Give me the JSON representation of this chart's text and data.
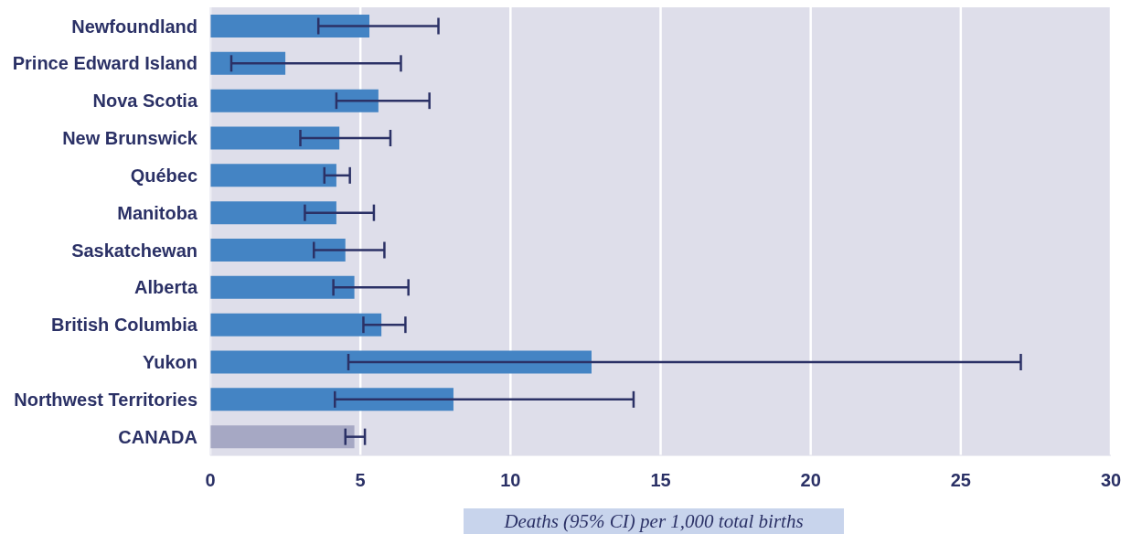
{
  "chart_data": {
    "type": "bar",
    "orientation": "horizontal",
    "categories": [
      "Newfoundland",
      "Prince Edward Island",
      "Nova Scotia",
      "New Brunswick",
      "Québec",
      "Manitoba",
      "Saskatchewan",
      "Alberta",
      "British Columbia",
      "Yukon",
      "Northwest Territories",
      "CANADA"
    ],
    "values": [
      5.3,
      2.5,
      5.6,
      4.3,
      4.2,
      4.2,
      4.5,
      4.8,
      5.7,
      12.7,
      8.1,
      4.8
    ],
    "errors": [
      [
        3.6,
        7.6
      ],
      [
        0.7,
        6.35
      ],
      [
        4.2,
        7.3
      ],
      [
        3.0,
        6.0
      ],
      [
        3.8,
        4.65
      ],
      [
        3.15,
        5.45
      ],
      [
        3.45,
        5.8
      ],
      [
        4.1,
        6.6
      ],
      [
        5.1,
        6.5
      ],
      [
        4.6,
        27.0
      ],
      [
        4.15,
        14.1
      ],
      [
        4.5,
        5.15
      ]
    ],
    "colors": [
      "#4484c4",
      "#4484c4",
      "#4484c4",
      "#4484c4",
      "#4484c4",
      "#4484c4",
      "#4484c4",
      "#4484c4",
      "#4484c4",
      "#4484c4",
      "#4484c4",
      "#a6a8c4"
    ],
    "xlabel": "Deaths (95% CI) per 1,000 total births",
    "xlim": [
      0,
      30
    ],
    "xticks": [
      0,
      5,
      10,
      15,
      20,
      25,
      30
    ],
    "grid": "x"
  }
}
